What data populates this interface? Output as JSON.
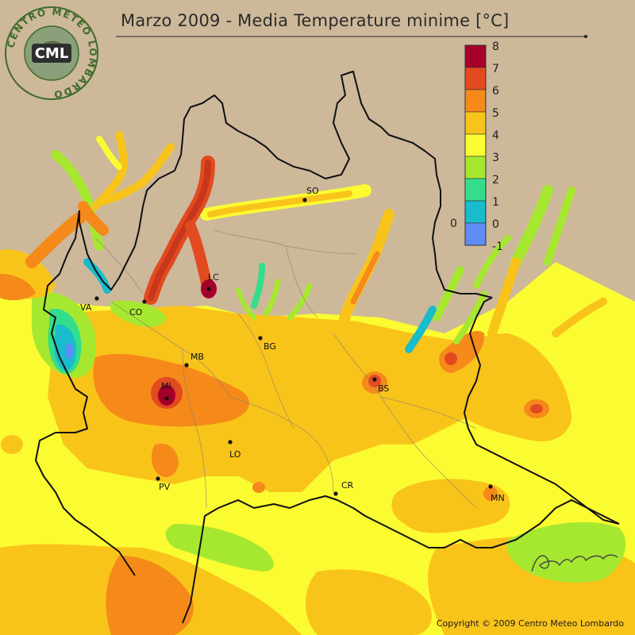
{
  "title": "Marzo 2009 - Media Temperature minime [°C]",
  "logo": {
    "ring_text": "CENTRO METEO LOMBARDO",
    "abbr": "CML"
  },
  "signature": "Bruno Gilli",
  "copyright": "Copyright © 2009 Centro Meteo Lombardo",
  "legend": {
    "labels": [
      "8",
      "7",
      "6",
      "5",
      "4",
      "3",
      "2",
      "1",
      "0",
      "-1"
    ],
    "side_label": "0",
    "colors": [
      "#a5002a",
      "#e24a1f",
      "#f58a1a",
      "#f9c41a",
      "#fbfb32",
      "#a6e830",
      "#33dd8c",
      "#18bccc",
      "#5f8cf5"
    ]
  },
  "cities": [
    {
      "name": "SO"
    },
    {
      "name": "LC"
    },
    {
      "name": "VA"
    },
    {
      "name": "CO"
    },
    {
      "name": "BG"
    },
    {
      "name": "MB"
    },
    {
      "name": "MI"
    },
    {
      "name": "BS"
    },
    {
      "name": "LO"
    },
    {
      "name": "PV"
    },
    {
      "name": "CR"
    },
    {
      "name": "MN"
    }
  ]
}
